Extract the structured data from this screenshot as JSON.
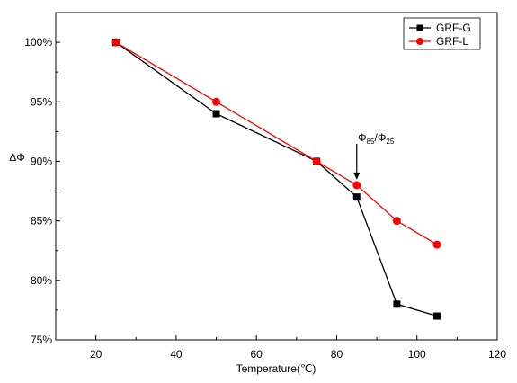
{
  "chart_data": {
    "type": "line",
    "title": "",
    "xlabel": "Temperature(℃)",
    "ylabel": "ΔΦ",
    "xlim": [
      10,
      120
    ],
    "ylim": [
      75,
      102.5
    ],
    "x_ticks": [
      20,
      40,
      60,
      80,
      100,
      120
    ],
    "x_tick_labels": [
      "20",
      "40",
      "60",
      "80",
      "100",
      "120"
    ],
    "y_ticks": [
      75,
      80,
      85,
      90,
      95,
      100
    ],
    "y_tick_labels": [
      "75%",
      "80%",
      "85%",
      "90%",
      "95%",
      "100%"
    ],
    "legend_position": "top-right",
    "grid": false,
    "series": [
      {
        "name": "GRF-G",
        "color": "#000000",
        "marker": "square",
        "x": [
          25,
          50,
          75,
          85,
          95,
          105
        ],
        "y": [
          100,
          94,
          90,
          87,
          78,
          77
        ]
      },
      {
        "name": "GRF-L",
        "color": "#ff0000",
        "marker": "circle",
        "x": [
          25,
          50,
          75,
          85,
          95,
          105
        ],
        "y": [
          100,
          95,
          90,
          88,
          85,
          83
        ]
      }
    ],
    "annotation": {
      "main_1": "Φ",
      "sub_1": "85",
      "slash": "/Φ",
      "sub_2": "25",
      "arrow_target": {
        "x": 85,
        "y": 88
      }
    }
  }
}
